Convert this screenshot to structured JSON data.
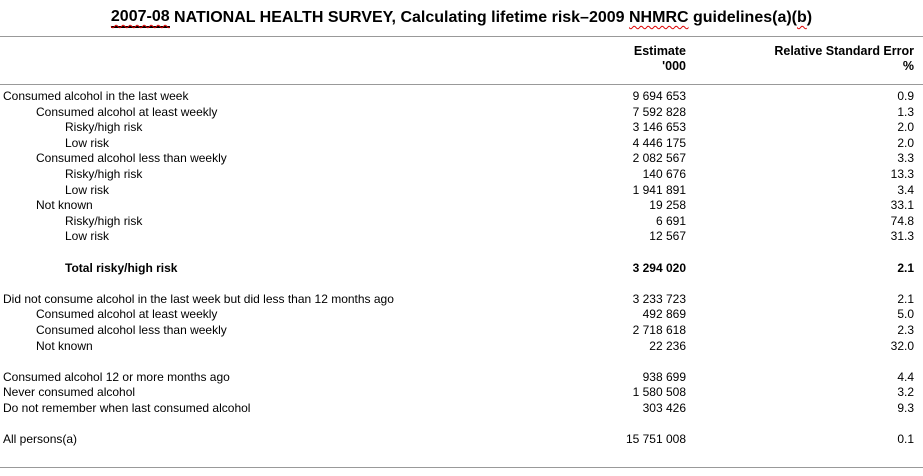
{
  "title": "2007-08 NATIONAL HEALTH SURVEY, Calculating lifetime risk–2009 NHMRC guidelines(a)(b)",
  "title_segments": [
    {
      "text": "2007-08",
      "solid_underline": true,
      "squiggle": true
    },
    {
      "text": " NATIONAL HEALTH SURVEY, Calculating lifetime risk–2009 "
    },
    {
      "text": "NHMRC",
      "squiggle": true
    },
    {
      "text": " guidelines(a)("
    },
    {
      "text": "b",
      "squiggle": true
    },
    {
      "text": ")"
    }
  ],
  "columns": {
    "estimate": {
      "label": "Estimate",
      "unit": "'000"
    },
    "rse": {
      "label": "Relative Standard Error",
      "unit": "%"
    }
  },
  "rows": [
    {
      "label": "Consumed alcohol in the last week",
      "indent": 0,
      "estimate": "9 694 653",
      "rse": "0.9"
    },
    {
      "label": "Consumed alcohol at least weekly",
      "indent": 1,
      "estimate": "7 592 828",
      "rse": "1.3"
    },
    {
      "label": "Risky/high risk",
      "indent": 2,
      "estimate": "3 146 653",
      "rse": "2.0"
    },
    {
      "label": "Low risk",
      "indent": 2,
      "estimate": "4 446 175",
      "rse": "2.0"
    },
    {
      "label": "Consumed alcohol less than weekly",
      "indent": 1,
      "estimate": "2 082 567",
      "rse": "3.3"
    },
    {
      "label": "Risky/high risk",
      "indent": 2,
      "estimate": "140 676",
      "rse": "13.3"
    },
    {
      "label": "Low risk",
      "indent": 2,
      "estimate": "1 941 891",
      "rse": "3.4"
    },
    {
      "label": "Not known",
      "indent": 1,
      "estimate": "19 258",
      "rse": "33.1"
    },
    {
      "label": "Risky/high risk",
      "indent": 2,
      "estimate": "6 691",
      "rse": "74.8"
    },
    {
      "label": "Low risk",
      "indent": 2,
      "estimate": "12 567",
      "rse": "31.3"
    },
    {
      "spacer": true
    },
    {
      "label": "Total risky/high risk",
      "indent": 2,
      "estimate": "3 294 020",
      "rse": "2.1",
      "bold": true
    },
    {
      "spacer": true
    },
    {
      "label": "Did not consume alcohol in the last week but did less than 12 months ago",
      "indent": 0,
      "estimate": "3 233 723",
      "rse": "2.1"
    },
    {
      "label": "Consumed alcohol at least weekly",
      "indent": 1,
      "estimate": "492 869",
      "rse": "5.0"
    },
    {
      "label": "Consumed alcohol less than weekly",
      "indent": 1,
      "estimate": "2 718 618",
      "rse": "2.3"
    },
    {
      "label": "Not known",
      "indent": 1,
      "estimate": "22 236",
      "rse": "32.0"
    },
    {
      "spacer": true
    },
    {
      "label": "Consumed alcohol 12 or more months ago",
      "indent": 0,
      "estimate": "938 699",
      "rse": "4.4"
    },
    {
      "label": "Never consumed alcohol",
      "indent": 0,
      "estimate": "1 580 508",
      "rse": "3.2"
    },
    {
      "label": "Do not remember when last consumed alcohol",
      "indent": 0,
      "estimate": "303 426",
      "rse": "9.3"
    },
    {
      "spacer": true
    },
    {
      "label": "All persons(a)",
      "indent": 0,
      "estimate": "15 751 008",
      "rse": "0.1"
    }
  ],
  "colors": {
    "background": "#ffffff",
    "text": "#000000",
    "rule": "#999999",
    "squiggle": "#dd0000"
  }
}
